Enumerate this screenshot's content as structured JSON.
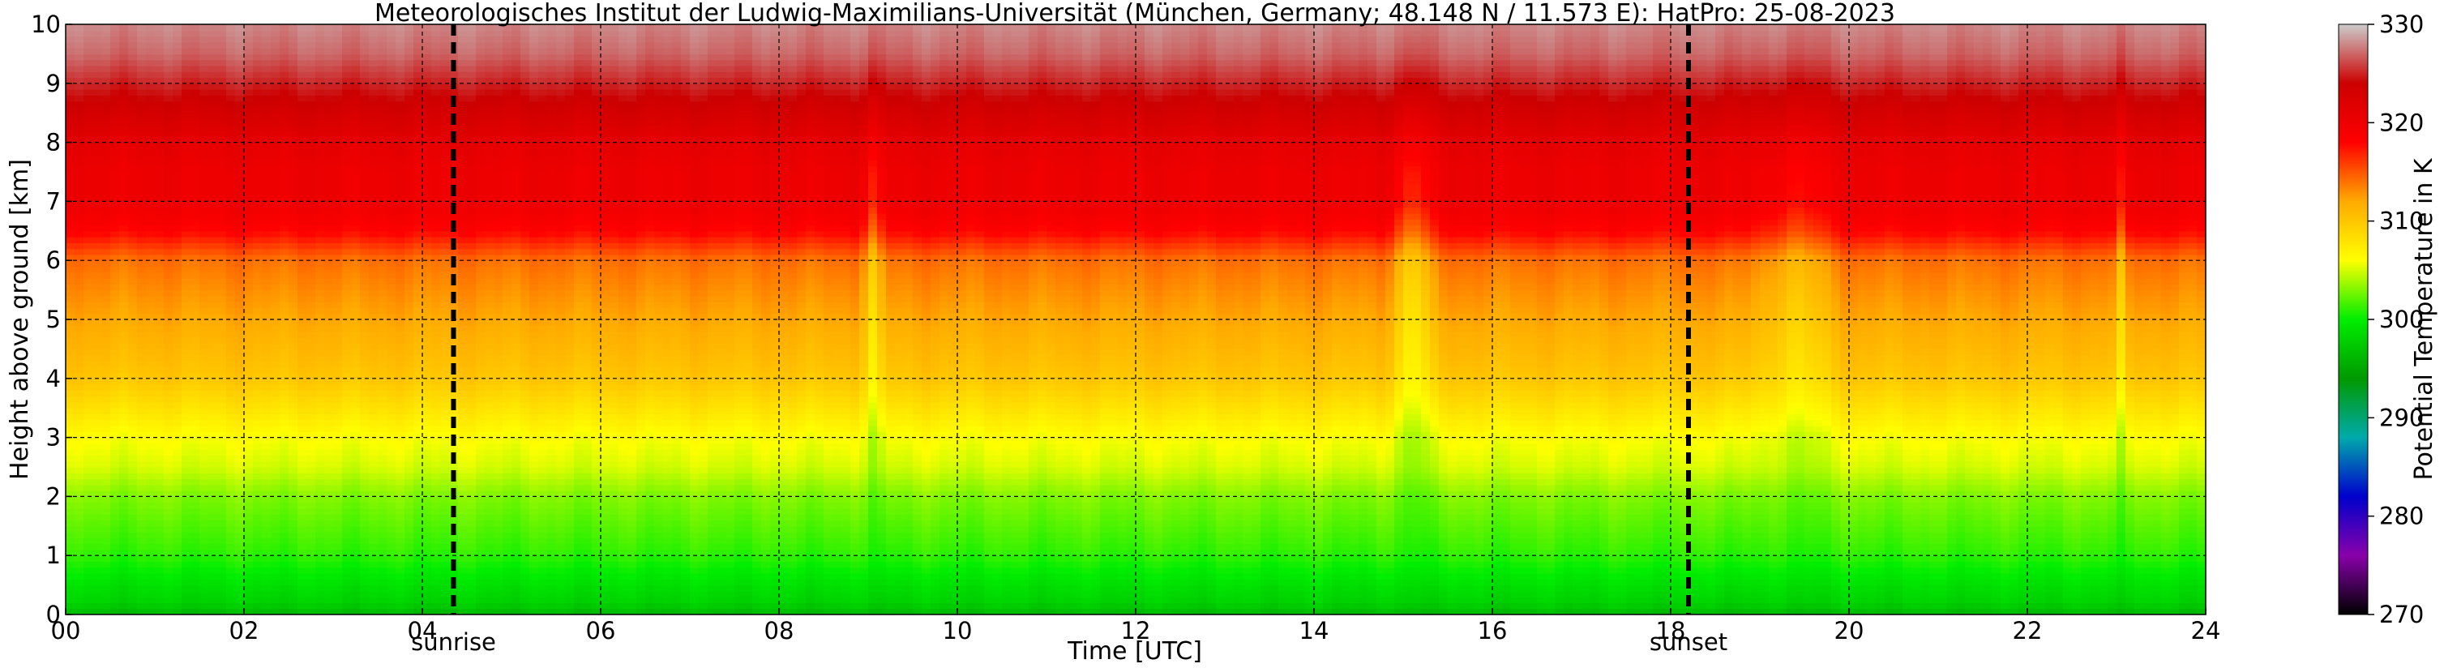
{
  "chart_data": {
    "type": "heatmap",
    "title": "Meteorologisches Institut der Ludwig-Maximilians-Universität (München, Germany; 48.148 N / 11.573 E):    HatPro: 25-08-2023",
    "xlabel": "Time [UTC]",
    "ylabel": "Height above ground [km]",
    "xlim": [
      0,
      24
    ],
    "ylim": [
      0,
      10
    ],
    "x_ticks": [
      0,
      2,
      4,
      6,
      8,
      10,
      12,
      14,
      16,
      18,
      20,
      22,
      24
    ],
    "x_tick_labels": [
      "00",
      "02",
      "04",
      "06",
      "08",
      "10",
      "12",
      "14",
      "16",
      "18",
      "20",
      "22",
      "24"
    ],
    "y_ticks": [
      0,
      1,
      2,
      3,
      4,
      5,
      6,
      7,
      8,
      9,
      10
    ],
    "y_tick_labels": [
      "0",
      "1",
      "2",
      "3",
      "4",
      "5",
      "6",
      "7",
      "8",
      "9",
      "10"
    ],
    "grid": true,
    "colorbar": {
      "label": "Potential Temperature in K",
      "range": [
        270,
        330
      ],
      "ticks": [
        270,
        280,
        290,
        300,
        310,
        320,
        330
      ],
      "tick_labels": [
        "270",
        "280",
        "290",
        "300",
        "310",
        "320",
        "330"
      ]
    },
    "markers": [
      {
        "label": "sunrise",
        "time": 4.35
      },
      {
        "label": "sunset",
        "time": 18.2
      }
    ],
    "profile": {
      "heights_km": [
        0,
        0.2,
        0.5,
        1,
        1.5,
        2,
        2.5,
        3,
        3.5,
        4,
        4.5,
        5,
        5.5,
        6,
        6.5,
        7,
        7.5,
        8,
        8.5,
        9,
        9.5,
        10
      ],
      "theta_K": [
        296,
        298,
        299,
        301,
        302,
        303,
        305,
        306,
        308,
        310,
        311,
        312,
        313,
        314,
        318,
        320,
        320,
        321,
        323,
        325,
        327,
        328
      ]
    },
    "warm_intrusions": [
      {
        "time_start": 8.9,
        "time_end": 9.2,
        "delta_K": 4
      },
      {
        "time_start": 14.8,
        "time_end": 15.4,
        "delta_K": 5
      },
      {
        "time_start": 18.8,
        "time_end": 20.0,
        "delta_K": 3
      },
      {
        "time_start": 23.0,
        "time_end": 23.1,
        "delta_K": 3
      }
    ]
  },
  "colors": {
    "colormap": [
      "#000000",
      "#8800aa",
      "#0000cc",
      "#00aaaa",
      "#009900",
      "#00ee00",
      "#ffff00",
      "#ffaa00",
      "#ff0000",
      "#cc0000",
      "#cccccc"
    ],
    "grid": "#000000",
    "marker_line": "#000000"
  }
}
